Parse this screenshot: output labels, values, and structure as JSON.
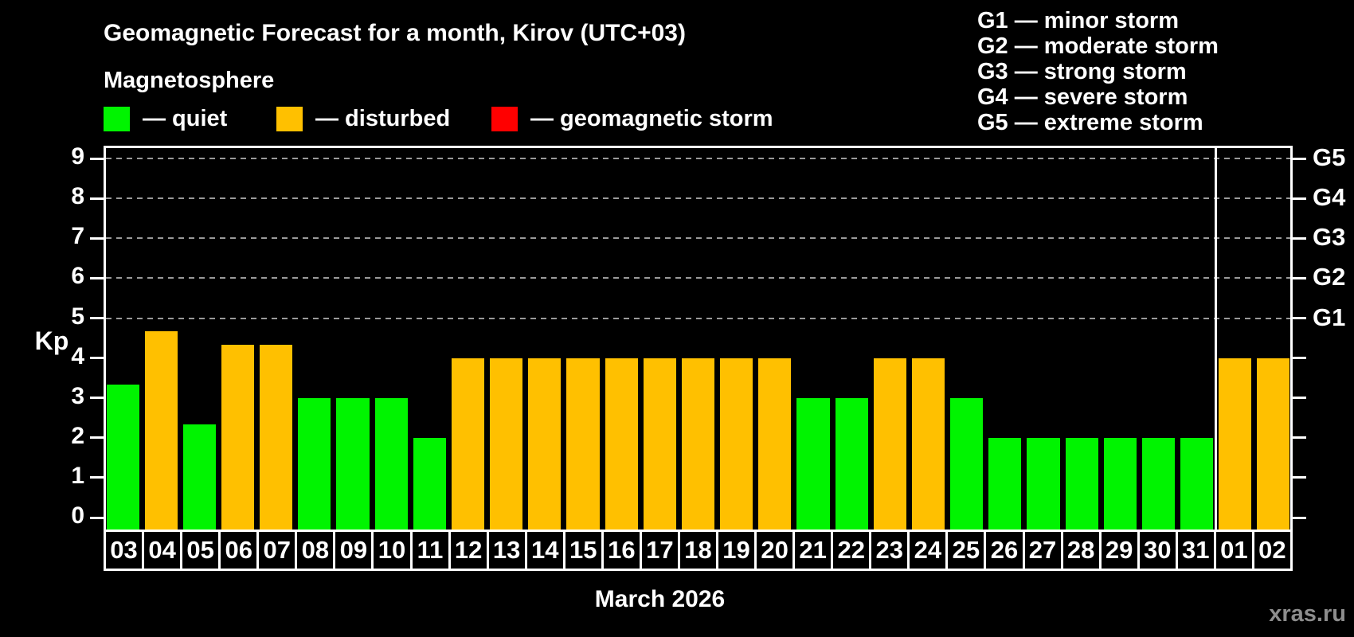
{
  "title": "Geomagnetic Forecast for a month, Kirov (UTC+03)",
  "subtitle": "Magnetosphere",
  "legend": {
    "items": [
      {
        "key": "quiet",
        "label": "— quiet"
      },
      {
        "key": "disturbed",
        "label": "— disturbed"
      },
      {
        "key": "storm",
        "label": "— geomagnetic storm"
      }
    ]
  },
  "g_legend": [
    "G1 — minor storm",
    "G2 — moderate storm",
    "G3 — strong storm",
    "G4 — severe storm",
    "G5 — extreme storm"
  ],
  "watermark": "xras.ru",
  "chart_data": {
    "type": "bar",
    "title": "Geomagnetic Forecast for a month, Kirov (UTC+03)",
    "xlabel": "March 2026",
    "ylabel": "Kp",
    "ylim": [
      -0.36,
      9.68
    ],
    "yticks": [
      0,
      1,
      2,
      3,
      4,
      5,
      6,
      7,
      8,
      9
    ],
    "gridlines_at": [
      5,
      6,
      7,
      8,
      9
    ],
    "grid": "dashed",
    "right_axis_labels": [
      {
        "kp": 5,
        "label": "G1"
      },
      {
        "kp": 6,
        "label": "G2"
      },
      {
        "kp": 7,
        "label": "G3"
      },
      {
        "kp": 8,
        "label": "G4"
      },
      {
        "kp": 9,
        "label": "G5"
      }
    ],
    "categories": [
      "03",
      "04",
      "05",
      "06",
      "07",
      "08",
      "09",
      "10",
      "11",
      "12",
      "13",
      "14",
      "15",
      "16",
      "17",
      "18",
      "19",
      "20",
      "21",
      "22",
      "23",
      "24",
      "25",
      "26",
      "27",
      "28",
      "29",
      "30",
      "31",
      "01",
      "02"
    ],
    "values": [
      3.33,
      4.67,
      2.33,
      4.33,
      4.33,
      3,
      3,
      3,
      2,
      4,
      4,
      4,
      4,
      4,
      4,
      4,
      4,
      4,
      3,
      3,
      4,
      4,
      3,
      2,
      2,
      2,
      2,
      2,
      2,
      4,
      4
    ],
    "statuses": [
      "quiet",
      "disturbed",
      "quiet",
      "disturbed",
      "disturbed",
      "quiet",
      "quiet",
      "quiet",
      "quiet",
      "disturbed",
      "disturbed",
      "disturbed",
      "disturbed",
      "disturbed",
      "disturbed",
      "disturbed",
      "disturbed",
      "disturbed",
      "quiet",
      "quiet",
      "disturbed",
      "disturbed",
      "quiet",
      "quiet",
      "quiet",
      "quiet",
      "quiet",
      "quiet",
      "quiet",
      "disturbed",
      "disturbed"
    ],
    "month_separator_after_index": 28,
    "colors": {
      "quiet": "#00f400",
      "disturbed": "#ffc000",
      "storm": "#ff0000",
      "axis": "#ffffff",
      "grid": "#9a9a9a",
      "background": "#000000"
    }
  }
}
